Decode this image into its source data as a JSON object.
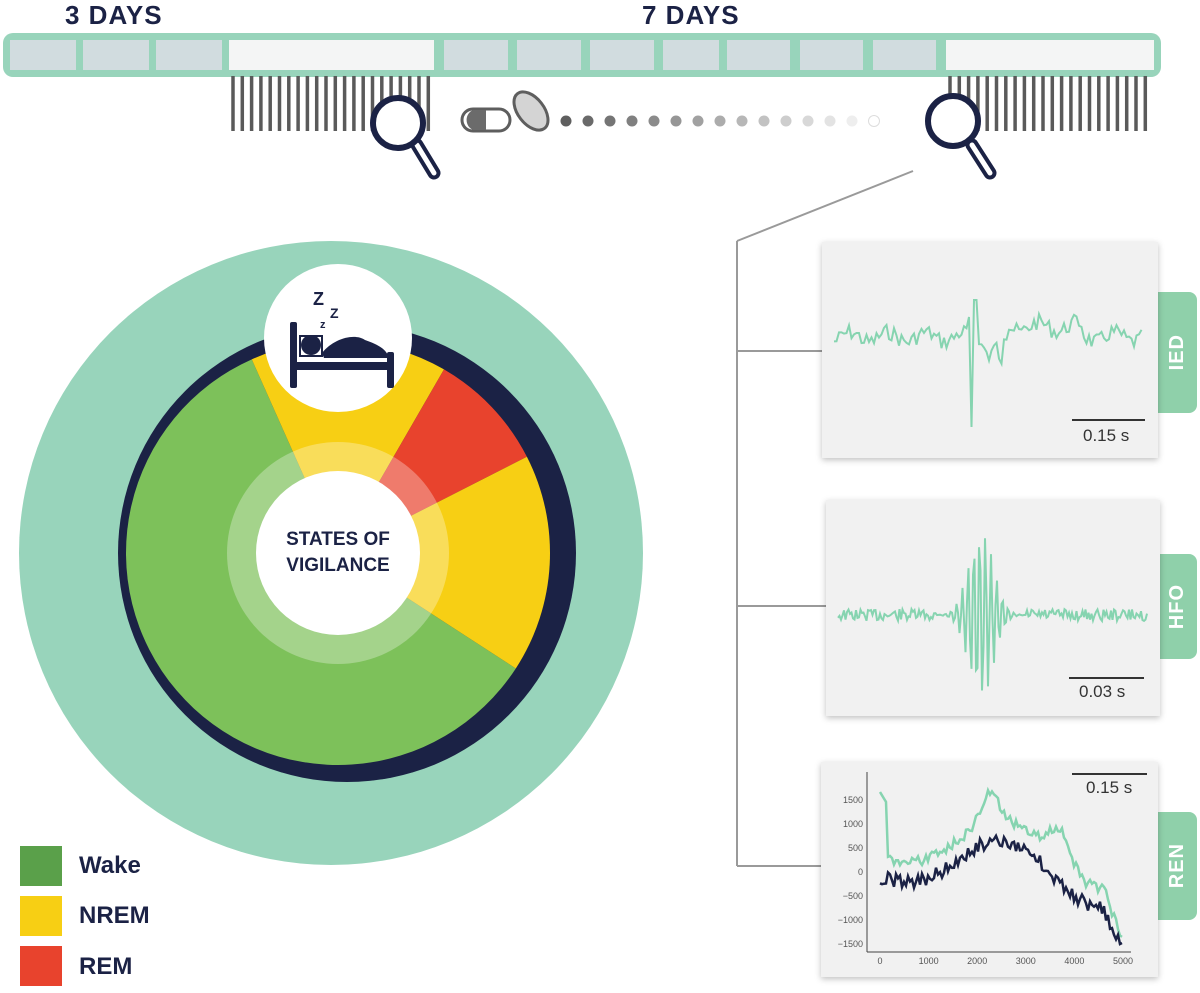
{
  "timeline": {
    "label_3days": "3 DAYS",
    "label_7days": "7 DAYS"
  },
  "center": {
    "line1": "STATES OF",
    "line2": "VIGILANCE"
  },
  "panels": [
    {
      "tab": "IED",
      "scale": "0.15 s"
    },
    {
      "tab": "HFO",
      "scale": "0.03 s"
    },
    {
      "tab": "REN",
      "scale": "0.15 s"
    }
  ],
  "legend": [
    {
      "label": "Wake",
      "color": "#5aa04a"
    },
    {
      "label": "NREM",
      "color": "#f7cf14"
    },
    {
      "label": "REM",
      "color": "#e8432d"
    }
  ],
  "ren_axes": {
    "y_ticks": [
      "1500",
      "1000",
      "500",
      "0",
      "−500",
      "−1000",
      "−1500"
    ],
    "x_ticks": [
      "0",
      "1000",
      "2000",
      "3000",
      "4000",
      "5000"
    ]
  },
  "colors": {
    "mint": "#98d4bb",
    "navy": "#1b2245",
    "wake": "#7dc15a",
    "nrem": "#f7cf14",
    "rem": "#e8432d",
    "trace": "#86d4b0"
  }
}
